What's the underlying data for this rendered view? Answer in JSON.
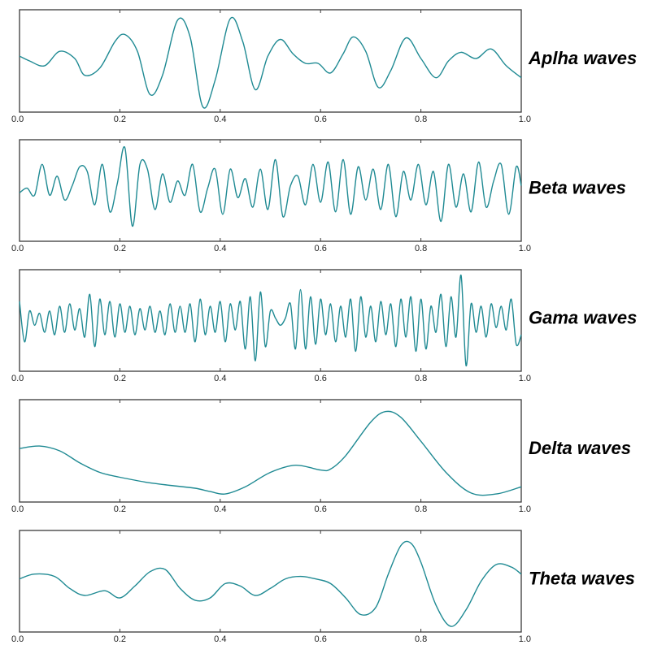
{
  "chart_data": [
    {
      "type": "line",
      "label": "Aplha waves",
      "xlim": [
        0.0,
        1.0
      ],
      "x_ticks": [
        "0.0",
        "0.2",
        "0.4",
        "0.6",
        "0.8",
        "1.0"
      ],
      "grid": false,
      "ylim": [
        -1,
        1
      ],
      "x": [
        0.0,
        0.02,
        0.05,
        0.08,
        0.11,
        0.13,
        0.16,
        0.19,
        0.21,
        0.235,
        0.26,
        0.285,
        0.315,
        0.34,
        0.365,
        0.39,
        0.42,
        0.445,
        0.47,
        0.495,
        0.52,
        0.545,
        0.57,
        0.595,
        0.62,
        0.645,
        0.665,
        0.69,
        0.715,
        0.74,
        0.77,
        0.8,
        0.83,
        0.855,
        0.88,
        0.91,
        0.94,
        0.97,
        1.0
      ],
      "y": [
        0.1,
        0.0,
        -0.1,
        0.2,
        0.05,
        -0.3,
        -0.15,
        0.4,
        0.55,
        0.2,
        -0.7,
        -0.3,
        0.85,
        0.5,
        -0.95,
        -0.4,
        0.88,
        0.4,
        -0.6,
        0.1,
        0.45,
        0.15,
        -0.05,
        -0.05,
        -0.25,
        0.15,
        0.5,
        0.2,
        -0.55,
        -0.2,
        0.48,
        0.05,
        -0.35,
        0.0,
        0.18,
        0.05,
        0.25,
        -0.1,
        -0.35
      ]
    },
    {
      "type": "line",
      "label": "Beta waves",
      "xlim": [
        0.0,
        1.0
      ],
      "x_ticks": [
        "0.0",
        "0.2",
        "0.4",
        "0.6",
        "0.8",
        "1.0"
      ],
      "grid": false,
      "ylim": [
        -1,
        1
      ],
      "x": [
        0.0,
        0.015,
        0.03,
        0.045,
        0.06,
        0.075,
        0.09,
        0.105,
        0.12,
        0.135,
        0.15,
        0.165,
        0.18,
        0.195,
        0.21,
        0.225,
        0.24,
        0.255,
        0.27,
        0.285,
        0.3,
        0.315,
        0.33,
        0.345,
        0.36,
        0.375,
        0.39,
        0.405,
        0.42,
        0.435,
        0.45,
        0.465,
        0.48,
        0.495,
        0.51,
        0.525,
        0.54,
        0.555,
        0.57,
        0.585,
        0.6,
        0.615,
        0.63,
        0.645,
        0.66,
        0.675,
        0.69,
        0.705,
        0.72,
        0.735,
        0.75,
        0.765,
        0.78,
        0.795,
        0.81,
        0.825,
        0.84,
        0.855,
        0.87,
        0.885,
        0.9,
        0.915,
        0.93,
        0.945,
        0.96,
        0.975,
        0.99,
        1.0
      ],
      "y": [
        -0.05,
        0.05,
        -0.1,
        0.55,
        -0.1,
        0.3,
        -0.2,
        0.1,
        0.5,
        0.4,
        -0.3,
        0.55,
        -0.45,
        0.15,
        0.9,
        -0.75,
        0.55,
        0.45,
        -0.4,
        0.35,
        -0.25,
        0.2,
        -0.1,
        0.55,
        -0.45,
        0.05,
        0.45,
        -0.5,
        0.45,
        -0.15,
        0.25,
        -0.35,
        0.45,
        -0.4,
        0.65,
        -0.55,
        0.1,
        0.3,
        -0.3,
        0.55,
        -0.25,
        0.6,
        -0.45,
        0.65,
        -0.5,
        0.5,
        -0.2,
        0.45,
        -0.4,
        0.55,
        -0.55,
        0.4,
        -0.2,
        0.55,
        -0.3,
        0.4,
        -0.65,
        0.55,
        -0.35,
        0.35,
        -0.45,
        0.6,
        -0.35,
        0.2,
        0.55,
        -0.5,
        0.5,
        0.1
      ]
    },
    {
      "type": "line",
      "label": "Gama waves",
      "xlim": [
        0.0,
        1.0
      ],
      "x_ticks": [
        "0.0",
        "0.2",
        "0.4",
        "0.6",
        "0.8",
        "1.0"
      ],
      "grid": false,
      "ylim": [
        -1,
        1
      ],
      "x": [
        0.0,
        0.01,
        0.02,
        0.03,
        0.04,
        0.05,
        0.06,
        0.07,
        0.08,
        0.09,
        0.1,
        0.11,
        0.12,
        0.13,
        0.14,
        0.15,
        0.16,
        0.17,
        0.18,
        0.19,
        0.2,
        0.21,
        0.22,
        0.23,
        0.24,
        0.25,
        0.26,
        0.27,
        0.28,
        0.29,
        0.3,
        0.31,
        0.32,
        0.33,
        0.34,
        0.35,
        0.36,
        0.37,
        0.38,
        0.39,
        0.4,
        0.41,
        0.42,
        0.43,
        0.44,
        0.45,
        0.46,
        0.47,
        0.48,
        0.49,
        0.5,
        0.51,
        0.52,
        0.53,
        0.54,
        0.55,
        0.56,
        0.57,
        0.58,
        0.59,
        0.6,
        0.61,
        0.62,
        0.63,
        0.64,
        0.65,
        0.66,
        0.67,
        0.68,
        0.69,
        0.7,
        0.71,
        0.72,
        0.73,
        0.74,
        0.75,
        0.76,
        0.77,
        0.78,
        0.79,
        0.8,
        0.81,
        0.82,
        0.83,
        0.84,
        0.85,
        0.86,
        0.87,
        0.88,
        0.89,
        0.9,
        0.91,
        0.92,
        0.93,
        0.94,
        0.95,
        0.96,
        0.97,
        0.98,
        0.99,
        1.0
      ],
      "y": [
        0.4,
        -0.45,
        0.2,
        -0.1,
        0.15,
        -0.25,
        0.2,
        -0.3,
        0.3,
        -0.25,
        0.35,
        -0.2,
        0.25,
        -0.35,
        0.55,
        -0.55,
        0.45,
        -0.3,
        0.4,
        -0.35,
        0.35,
        -0.25,
        0.3,
        -0.3,
        0.25,
        -0.2,
        0.3,
        -0.25,
        0.2,
        -0.3,
        0.35,
        -0.25,
        0.3,
        -0.25,
        0.35,
        -0.45,
        0.45,
        -0.3,
        0.3,
        -0.25,
        0.4,
        -0.45,
        0.35,
        -0.2,
        0.4,
        -0.6,
        0.5,
        -0.85,
        0.6,
        -0.55,
        0.2,
        0.05,
        -0.1,
        0.05,
        0.35,
        -0.6,
        0.65,
        -0.6,
        0.5,
        -0.5,
        0.45,
        -0.3,
        0.35,
        -0.45,
        0.3,
        -0.35,
        0.45,
        -0.65,
        0.5,
        -0.35,
        0.3,
        -0.45,
        0.4,
        -0.3,
        0.35,
        -0.55,
        0.45,
        -0.35,
        0.5,
        -0.65,
        0.45,
        -0.6,
        0.3,
        -0.25,
        0.55,
        -0.55,
        0.5,
        -0.35,
        0.95,
        -0.95,
        0.35,
        -0.25,
        0.3,
        -0.35,
        0.35,
        -0.15,
        0.3,
        -0.2,
        0.45,
        -0.5,
        -0.3
      ]
    },
    {
      "type": "line",
      "label": "Delta waves",
      "xlim": [
        0.0,
        1.0
      ],
      "x_ticks": [
        "0.0",
        "0.2",
        "0.4",
        "0.6",
        "0.8",
        "1.0"
      ],
      "grid": false,
      "ylim": [
        -1,
        1
      ],
      "x": [
        0.0,
        0.04,
        0.08,
        0.12,
        0.16,
        0.2,
        0.25,
        0.3,
        0.35,
        0.38,
        0.41,
        0.45,
        0.5,
        0.55,
        0.6,
        0.62,
        0.65,
        0.7,
        0.73,
        0.76,
        0.8,
        0.85,
        0.9,
        0.95,
        1.0
      ],
      "y": [
        0.05,
        0.1,
        0.0,
        -0.25,
        -0.45,
        -0.55,
        -0.65,
        -0.72,
        -0.78,
        -0.85,
        -0.9,
        -0.75,
        -0.45,
        -0.3,
        -0.4,
        -0.38,
        -0.1,
        0.6,
        0.82,
        0.7,
        0.2,
        -0.45,
        -0.88,
        -0.9,
        -0.75
      ]
    },
    {
      "type": "line",
      "label": "Theta waves",
      "xlim": [
        0.0,
        1.0
      ],
      "x_ticks": [
        "0.0",
        "0.2",
        "0.4",
        "0.6",
        "0.8",
        "1.0"
      ],
      "grid": false,
      "ylim": [
        -1,
        1
      ],
      "x": [
        0.0,
        0.03,
        0.07,
        0.1,
        0.13,
        0.17,
        0.2,
        0.23,
        0.26,
        0.29,
        0.32,
        0.35,
        0.38,
        0.41,
        0.44,
        0.47,
        0.5,
        0.53,
        0.56,
        0.59,
        0.62,
        0.65,
        0.68,
        0.71,
        0.735,
        0.76,
        0.78,
        0.8,
        0.83,
        0.86,
        0.89,
        0.92,
        0.95,
        0.98,
        1.0
      ],
      "y": [
        0.05,
        0.15,
        0.1,
        -0.15,
        -0.3,
        -0.2,
        -0.35,
        -0.1,
        0.2,
        0.25,
        -0.15,
        -0.4,
        -0.35,
        -0.05,
        -0.1,
        -0.3,
        -0.15,
        0.05,
        0.1,
        0.05,
        -0.05,
        -0.35,
        -0.7,
        -0.55,
        0.15,
        0.75,
        0.8,
        0.4,
        -0.5,
        -0.95,
        -0.6,
        0.0,
        0.35,
        0.3,
        0.15
      ]
    }
  ]
}
